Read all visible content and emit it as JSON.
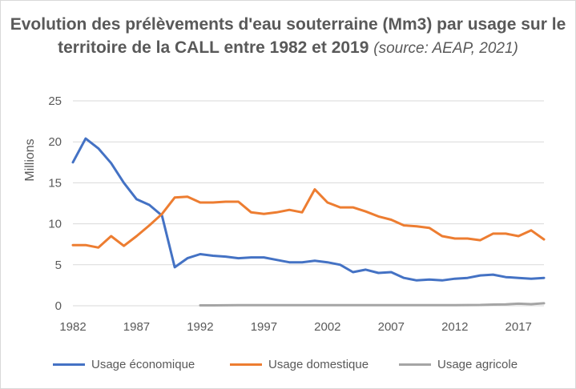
{
  "chart_data": {
    "type": "line",
    "title": "Evolution des prélèvements d'eau souterraine (Mm3) par usage sur le territoire de la CALL entre 1982 et 2019",
    "title_source": "(source: AEAP, 2021)",
    "ylabel": "Millions",
    "xlabel": "",
    "ylim": [
      0,
      25
    ],
    "yticks": [
      "0",
      "5",
      "10",
      "15",
      "20",
      "25"
    ],
    "xlim": [
      1982,
      2019
    ],
    "xticks": [
      "1982",
      "1987",
      "1992",
      "1997",
      "2002",
      "2007",
      "2012",
      "2017"
    ],
    "grid": "horizontal",
    "legend": "bottom",
    "x": [
      1982,
      1983,
      1984,
      1985,
      1986,
      1987,
      1988,
      1989,
      1990,
      1991,
      1992,
      1993,
      1994,
      1995,
      1996,
      1997,
      1998,
      1999,
      2000,
      2001,
      2002,
      2003,
      2004,
      2005,
      2006,
      2007,
      2008,
      2009,
      2010,
      2011,
      2012,
      2013,
      2014,
      2015,
      2016,
      2017,
      2018,
      2019
    ],
    "series": [
      {
        "name": "Usage économique",
        "color": "#4472c4",
        "values": [
          17.5,
          20.4,
          19.2,
          17.4,
          15.0,
          13.0,
          12.3,
          11.0,
          4.7,
          5.8,
          6.3,
          6.1,
          6.0,
          5.8,
          5.9,
          5.9,
          5.6,
          5.3,
          5.3,
          5.5,
          5.3,
          5.0,
          4.1,
          4.4,
          4.0,
          4.1,
          3.4,
          3.1,
          3.2,
          3.1,
          3.3,
          3.4,
          3.7,
          3.8,
          3.5,
          3.4,
          3.3,
          3.4
        ]
      },
      {
        "name": "Usage domestique",
        "color": "#ed7d31",
        "values": [
          7.4,
          7.4,
          7.1,
          8.5,
          7.3,
          8.5,
          9.8,
          11.2,
          13.2,
          13.3,
          12.6,
          12.6,
          12.7,
          12.7,
          11.4,
          11.2,
          11.4,
          11.7,
          11.4,
          14.2,
          12.6,
          12.0,
          12.0,
          11.5,
          10.9,
          10.5,
          9.8,
          9.7,
          9.5,
          8.5,
          8.2,
          8.2,
          8.0,
          8.8,
          8.8,
          8.5,
          9.2,
          8.1
        ]
      },
      {
        "name": "Usage agricole",
        "color": "#a5a5a5",
        "values": [
          null,
          null,
          null,
          null,
          null,
          null,
          null,
          null,
          null,
          null,
          0.05,
          0.05,
          0.06,
          0.07,
          0.07,
          0.07,
          0.07,
          0.07,
          0.07,
          0.07,
          0.07,
          0.07,
          0.07,
          0.07,
          0.07,
          0.07,
          0.08,
          0.08,
          0.08,
          0.08,
          0.08,
          0.09,
          0.1,
          0.15,
          0.18,
          0.25,
          0.2,
          0.3
        ]
      }
    ]
  }
}
